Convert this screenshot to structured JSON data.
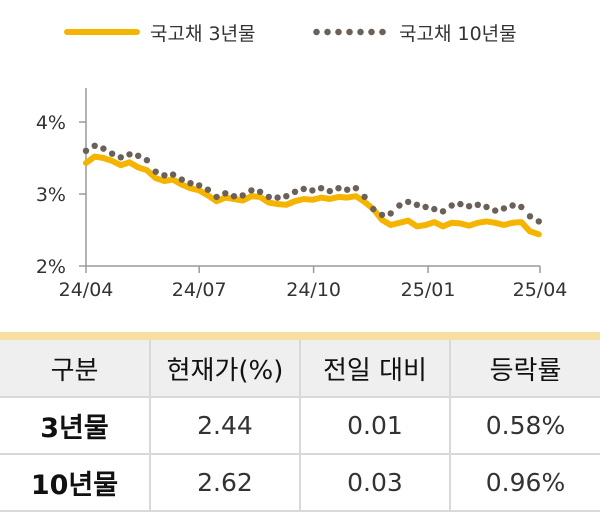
{
  "legend": {
    "series_3y": "국고채 3년물",
    "series_10y": "국고채 10년물"
  },
  "colors": {
    "series_3y": "#f5b400",
    "series_10y": "#6b6158",
    "axis": "#9a9a9a"
  },
  "chart_data": {
    "type": "line",
    "x_ticks": [
      "24/04",
      "24/07",
      "24/10",
      "25/01",
      "25/04"
    ],
    "x": [
      "24/04/01",
      "24/04/08",
      "24/04/15",
      "24/04/22",
      "24/04/29",
      "24/05/06",
      "24/05/13",
      "24/05/20",
      "24/05/27",
      "24/06/03",
      "24/06/10",
      "24/06/17",
      "24/06/24",
      "24/07/01",
      "24/07/08",
      "24/07/15",
      "24/07/22",
      "24/07/29",
      "24/08/05",
      "24/08/12",
      "24/08/19",
      "24/08/26",
      "24/09/02",
      "24/09/09",
      "24/09/16",
      "24/09/23",
      "24/09/30",
      "24/10/07",
      "24/10/14",
      "24/10/21",
      "24/10/28",
      "24/11/04",
      "24/11/11",
      "24/11/18",
      "24/11/25",
      "24/12/02",
      "24/12/09",
      "24/12/16",
      "24/12/23",
      "24/12/30",
      "25/01/06",
      "25/01/13",
      "25/01/20",
      "25/01/27",
      "25/02/03",
      "25/02/10",
      "25/02/17",
      "25/02/24",
      "25/03/03",
      "25/03/10",
      "25/03/17",
      "25/03/24",
      "25/03/31"
    ],
    "series": [
      {
        "name": "국고채 3년물",
        "style": "line",
        "values": [
          3.43,
          3.52,
          3.5,
          3.46,
          3.4,
          3.44,
          3.37,
          3.33,
          3.22,
          3.18,
          3.2,
          3.13,
          3.08,
          3.05,
          2.98,
          2.9,
          2.95,
          2.93,
          2.91,
          2.97,
          2.96,
          2.88,
          2.86,
          2.85,
          2.9,
          2.93,
          2.92,
          2.95,
          2.93,
          2.96,
          2.95,
          2.97,
          2.89,
          2.79,
          2.64,
          2.57,
          2.6,
          2.63,
          2.55,
          2.57,
          2.61,
          2.55,
          2.6,
          2.59,
          2.56,
          2.6,
          2.62,
          2.6,
          2.57,
          2.6,
          2.61,
          2.48,
          2.44
        ]
      },
      {
        "name": "국고채 10년물",
        "style": "dots",
        "values": [
          3.6,
          3.67,
          3.63,
          3.56,
          3.51,
          3.55,
          3.53,
          3.47,
          3.31,
          3.26,
          3.27,
          3.2,
          3.15,
          3.12,
          3.06,
          2.96,
          3.01,
          2.97,
          2.98,
          3.05,
          3.03,
          2.96,
          2.95,
          2.97,
          3.03,
          3.07,
          3.05,
          3.08,
          3.04,
          3.08,
          3.06,
          3.08,
          2.96,
          2.79,
          2.71,
          2.73,
          2.84,
          2.89,
          2.85,
          2.82,
          2.79,
          2.76,
          2.84,
          2.86,
          2.83,
          2.85,
          2.82,
          2.77,
          2.8,
          2.84,
          2.82,
          2.69,
          2.62
        ]
      }
    ],
    "ylim": [
      2,
      4
    ],
    "y_ticks": [
      2,
      3,
      4
    ],
    "y_tick_labels": [
      "2%",
      "3%",
      "4%"
    ],
    "grid": false,
    "legend_position": "top"
  },
  "table": {
    "headers": [
      "구분",
      "현재가(%)",
      "전일 대비",
      "등락률"
    ],
    "rows": [
      [
        "3년물",
        "2.44",
        "0.01",
        "0.58%"
      ],
      [
        "10년물",
        "2.62",
        "0.03",
        "0.96%"
      ]
    ]
  }
}
